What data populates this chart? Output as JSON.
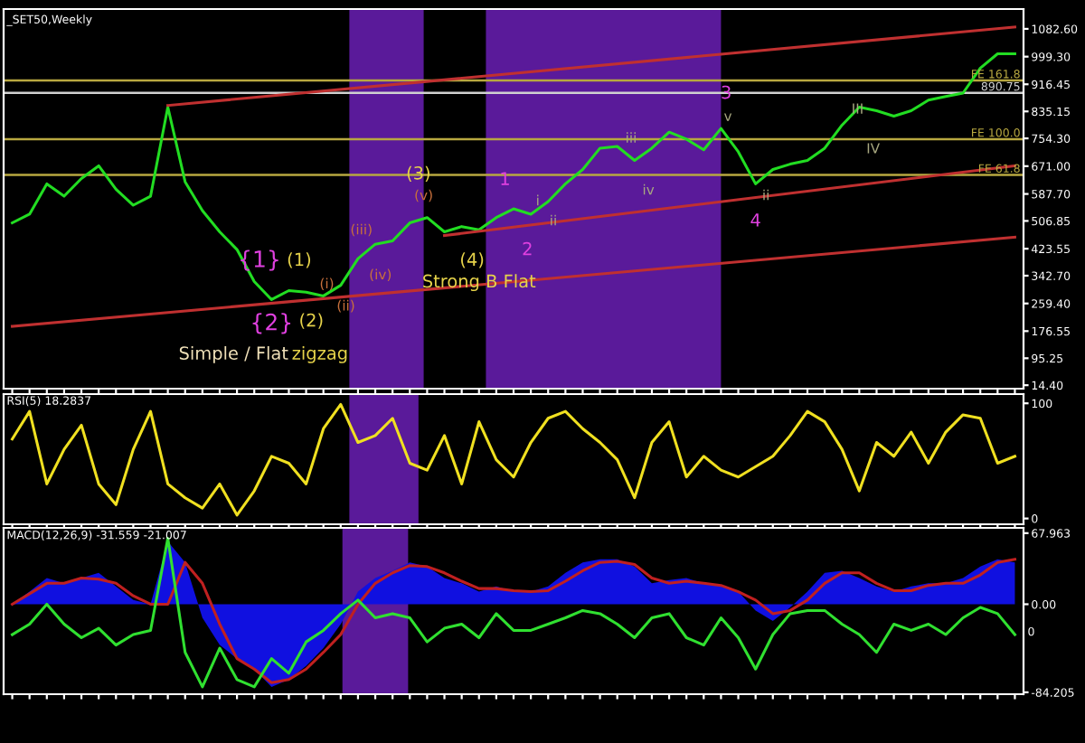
{
  "chart_data": [
    {
      "type": "line",
      "title": "_SET50,Weekly",
      "categories": [
        null,
        null,
        null,
        null,
        null,
        null,
        null,
        null,
        null,
        null,
        null,
        null,
        null,
        null,
        null,
        null,
        null,
        null,
        null,
        null,
        null,
        null,
        null,
        null,
        null,
        null,
        null,
        null,
        null,
        null,
        null,
        null,
        null,
        null,
        null,
        null,
        null,
        null,
        null,
        null,
        null,
        null,
        null,
        null,
        null,
        null,
        null,
        null,
        null,
        null,
        null,
        null,
        null,
        null,
        null,
        null,
        null,
        null,
        null
      ],
      "series": [
        {
          "color": "#22dd22",
          "values": [
            501,
            527,
            618,
            581,
            634,
            672,
            602,
            554,
            581,
            848,
            624,
            538,
            474,
            421,
            325,
            271,
            298,
            293,
            282,
            314,
            394,
            437,
            447,
            501,
            517,
            474,
            490,
            480,
            517,
            543,
            527,
            565,
            618,
            661,
            725,
            730,
            688,
            725,
            773,
            752,
            720,
            784,
            714,
            618,
            661,
            677,
            688,
            725,
            794,
            848,
            837,
            821,
            837,
            869,
            880,
            890,
            965,
            1008,
            1008
          ]
        },
        {
          "type": "line",
          "color": "#c03030",
          "values": [
            null,
            null,
            null,
            null,
            null,
            null,
            null,
            null,
            null,
            853,
            null,
            null,
            null,
            null,
            null,
            null,
            null,
            null,
            null,
            null,
            null,
            null,
            null,
            null,
            null,
            null,
            null,
            null,
            null,
            null,
            null,
            null,
            null,
            null,
            null,
            null,
            null,
            null,
            null,
            null,
            null,
            null,
            null,
            null,
            null,
            null,
            null,
            null,
            null,
            null,
            null,
            null,
            null,
            null,
            null,
            null,
            null,
            null,
            1088
          ]
        },
        {
          "type": "line",
          "color": "#c03030",
          "values": [
            191,
            null,
            null,
            null,
            null,
            null,
            null,
            null,
            null,
            null,
            null,
            null,
            null,
            null,
            null,
            null,
            null,
            null,
            null,
            null,
            null,
            null,
            null,
            null,
            null,
            null,
            null,
            null,
            null,
            null,
            null,
            null,
            null,
            null,
            null,
            null,
            null,
            null,
            null,
            null,
            null,
            null,
            null,
            null,
            null,
            null,
            null,
            null,
            null,
            null,
            null,
            null,
            null,
            null,
            null,
            null,
            null,
            null,
            458
          ]
        },
        {
          "type": "line",
          "color": "#c03030",
          "values": [
            null,
            null,
            null,
            null,
            null,
            null,
            null,
            null,
            null,
            null,
            null,
            null,
            null,
            null,
            null,
            null,
            null,
            null,
            null,
            null,
            null,
            null,
            null,
            null,
            null,
            463,
            null,
            null,
            null,
            null,
            null,
            null,
            null,
            null,
            null,
            null,
            null,
            null,
            null,
            null,
            null,
            null,
            null,
            null,
            null,
            null,
            null,
            null,
            null,
            null,
            null,
            null,
            null,
            null,
            null,
            null,
            null,
            null,
            672
          ]
        }
      ],
      "ylim": [
        4,
        1142
      ],
      "yticks": [
        {
          "value": 1082.6,
          "label": "1082.60"
        },
        {
          "value": 999.3,
          "label": "999.30"
        },
        {
          "value": 916.45,
          "label": "916.45"
        },
        {
          "value": 835.15,
          "label": "835.15"
        },
        {
          "value": 754.3,
          "label": "754.30"
        },
        {
          "value": 671,
          "label": "671.00"
        },
        {
          "value": 587.7,
          "label": "587.70"
        },
        {
          "value": 506.85,
          "label": "506.85"
        },
        {
          "value": 423.55,
          "label": "423.55"
        },
        {
          "value": 342.7,
          "label": "342.70"
        },
        {
          "value": 259.4,
          "label": "259.40"
        },
        {
          "value": 176.55,
          "label": "176.55"
        },
        {
          "value": 95.25,
          "label": "95.25"
        },
        {
          "value": 14.4,
          "label": "14.40"
        }
      ],
      "ref_lines": [
        {
          "axis": "y",
          "value": 928,
          "label": "FE 161.8",
          "color": "#b8a840"
        },
        {
          "axis": "y",
          "value": 890.75,
          "label": "890.75",
          "color": "#d0d0d0"
        },
        {
          "axis": "y",
          "value": 752,
          "label": "FE 100.0",
          "color": "#b8a840"
        },
        {
          "axis": "y",
          "value": 645,
          "label": "FE 61.8",
          "color": "#b8a840"
        }
      ],
      "annotations": [
        "{1}",
        "{2}",
        "(1)",
        "(2)",
        "(3)",
        "(4)",
        "(i)",
        "(ii)",
        "(iii)",
        "(iv)",
        "(v)",
        "Simple / Flat",
        "zigzag",
        "Strong B Flat",
        "1",
        "2",
        "3",
        "4",
        "i",
        "ii",
        "iii",
        "iv",
        "v",
        "ii",
        "III",
        "IV"
      ],
      "tick_labels": "y",
      "grid": false,
      "legend": false
    },
    {
      "type": "line",
      "title": "RSI(5) 18.2837",
      "categories": [
        null,
        null,
        null,
        null,
        null,
        null,
        null,
        null,
        null,
        null,
        null,
        null,
        null,
        null,
        null,
        null,
        null,
        null,
        null,
        null,
        null,
        null,
        null,
        null,
        null,
        null,
        null,
        null,
        null,
        null,
        null,
        null,
        null,
        null,
        null,
        null,
        null,
        null,
        null,
        null,
        null,
        null,
        null,
        null,
        null,
        null,
        null,
        null,
        null,
        null,
        null,
        null,
        null,
        null,
        null,
        null,
        null,
        null,
        null
      ],
      "series": [
        {
          "color": "#f0e020",
          "values": [
            69,
            93,
            30,
            60,
            81,
            30,
            12,
            60,
            93,
            30,
            18,
            9,
            30,
            3,
            24,
            54,
            48,
            30,
            78,
            99,
            66,
            72,
            87,
            48,
            42,
            72,
            30,
            84,
            51,
            36,
            66,
            87,
            93,
            78,
            66,
            51,
            18,
            66,
            84,
            36,
            54,
            42,
            36,
            45,
            54,
            72,
            93,
            84,
            60,
            24,
            66,
            54,
            75,
            48,
            75,
            90,
            87,
            48,
            54
          ]
        }
      ],
      "ylim": [
        -5,
        108
      ],
      "yticks": [
        0,
        100
      ],
      "tick_labels": "y",
      "grid": false,
      "legend": false
    },
    {
      "type": "line",
      "title": "MACD(12,26,9) -31.559 -21.007",
      "categories": [
        null,
        null,
        null,
        null,
        null,
        null,
        null,
        null,
        null,
        null,
        null,
        null,
        null,
        null,
        null,
        null,
        null,
        null,
        null,
        null,
        null,
        null,
        null,
        null,
        null,
        null,
        null,
        null,
        null,
        null,
        null,
        null,
        null,
        null,
        null,
        null,
        null,
        null,
        null,
        null,
        null,
        null,
        null,
        null,
        null,
        null,
        null,
        null,
        null,
        null,
        null,
        null,
        null,
        null,
        null,
        null,
        null,
        null,
        null
      ],
      "series": [
        {
          "type": "area",
          "color": "#1010e0",
          "values": [
            0,
            12,
            25,
            20,
            25,
            30,
            17,
            4,
            0,
            60,
            40,
            -13,
            -39,
            -52,
            -62,
            -79,
            -72,
            -59,
            -42,
            -19,
            12,
            25,
            32,
            40,
            36,
            25,
            20,
            12,
            17,
            12,
            12,
            17,
            30,
            40,
            43,
            43,
            36,
            20,
            23,
            25,
            20,
            17,
            12,
            -6,
            -16,
            -3,
            12,
            30,
            32,
            25,
            17,
            12,
            17,
            20,
            20,
            25,
            36,
            43,
            40
          ]
        },
        {
          "type": "line",
          "color": "#c02020",
          "values": [
            0,
            10,
            20,
            20,
            25,
            24,
            20,
            8,
            0,
            0,
            40,
            20,
            -19,
            -52,
            -62,
            -75,
            -72,
            -62,
            -46,
            -29,
            0,
            20,
            30,
            37,
            36,
            30,
            22,
            15,
            15,
            13,
            12,
            13,
            22,
            32,
            40,
            41,
            38,
            25,
            20,
            22,
            20,
            18,
            12,
            4,
            -9,
            -6,
            4,
            20,
            30,
            30,
            20,
            13,
            13,
            18,
            20,
            20,
            28,
            40,
            43
          ]
        },
        {
          "type": "line",
          "color": "#30e030",
          "values": [
            -29,
            -19,
            0,
            -19,
            -32,
            -23,
            -39,
            -29,
            -25,
            63,
            -46,
            -79,
            -42,
            -72,
            -79,
            -52,
            -66,
            -36,
            -25,
            -9,
            4,
            -13,
            -9,
            -13,
            -36,
            -23,
            -19,
            -32,
            -9,
            -25,
            -25,
            -19,
            -13,
            -6,
            -9,
            -19,
            -32,
            -13,
            -9,
            -32,
            -39,
            -13,
            -32,
            -62,
            -29,
            -9,
            -6,
            -6,
            -19,
            -29,
            -46,
            -19,
            -25,
            -19,
            -29,
            -13,
            -3,
            -9,
            -29
          ]
        }
      ],
      "ylim": [
        -86,
        73
      ],
      "yticks": [
        {
          "value": 67.963,
          "label": "67.963"
        },
        {
          "value": 0,
          "label": "0.00"
        },
        {
          "value": -84.205,
          "label": "-84.205"
        }
      ],
      "annotations": [
        "0"
      ],
      "tick_labels": "y",
      "grid": false,
      "legend": false
    }
  ]
}
